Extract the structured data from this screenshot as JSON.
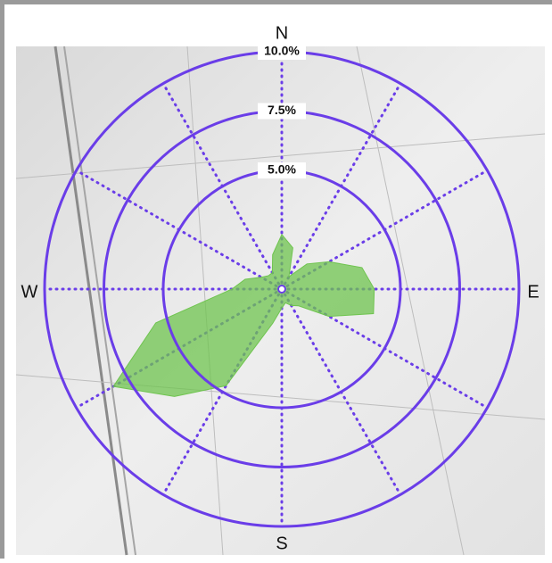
{
  "chart_data": {
    "type": "polar",
    "theta": [
      0,
      15,
      30,
      45,
      60,
      75,
      90,
      105,
      120,
      135,
      150,
      165,
      180,
      195,
      210,
      225,
      240,
      255,
      270,
      285,
      300,
      315,
      330,
      345
    ],
    "values": [
      2.3,
      1.8,
      0.6,
      1.5,
      2.3,
      3.5,
      3.9,
      4.0,
      2.3,
      1.0,
      0.8,
      0.6,
      0.8,
      1.5,
      4.7,
      6.4,
      8.2,
      5.5,
      2.1,
      1.6,
      1.0,
      0.8,
      0.8,
      1.5
    ],
    "color": "#6fc44f",
    "grid_color": "#6a3de8",
    "rlim": [
      0,
      10
    ],
    "rticks": [
      {
        "value": 5,
        "label": "5.0%"
      },
      {
        "value": 7.5,
        "label": "7.5%"
      },
      {
        "value": 10,
        "label": "10.0%"
      }
    ],
    "thetaticks": [
      0,
      30,
      60,
      90,
      120,
      150,
      180,
      210,
      240,
      270,
      300,
      330
    ],
    "direction_labels": [
      "N",
      "E",
      "S",
      "W"
    ]
  }
}
